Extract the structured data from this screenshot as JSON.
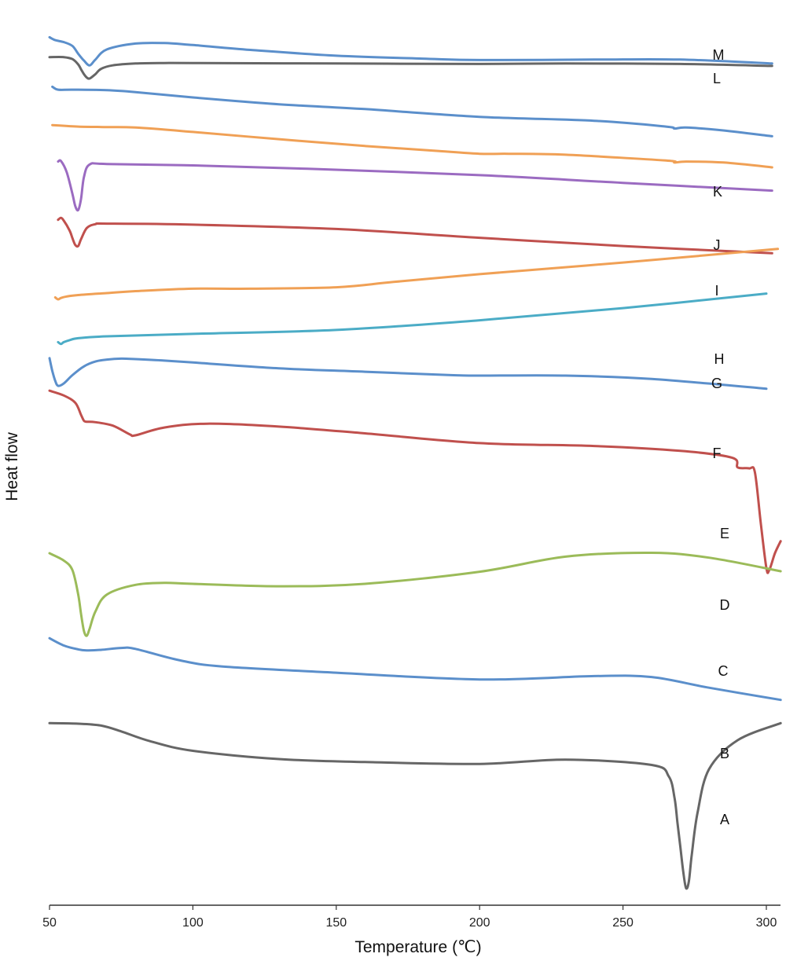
{
  "chart_data": {
    "type": "line",
    "title": "",
    "xlabel": "Temperature (℃)",
    "ylabel": "Heat flow",
    "xlim": [
      50,
      305
    ],
    "x_ticks": [
      50,
      100,
      150,
      200,
      250,
      300
    ],
    "y_ticks_shown": false,
    "grid": false,
    "legend": "none — each curve labelled directly at right",
    "series": [
      {
        "name": "M",
        "color": "#5b8fcb",
        "x": [
          50,
          52,
          55,
          58,
          60,
          62,
          64,
          66,
          70,
          80,
          90,
          100,
          120,
          150,
          180,
          200,
          240,
          270,
          302
        ],
        "y": [
          12.38,
          12.32,
          12.28,
          12.2,
          12.04,
          11.9,
          11.8,
          11.92,
          12.13,
          12.25,
          12.26,
          12.22,
          12.12,
          12.0,
          11.94,
          11.91,
          11.92,
          11.92,
          11.84
        ]
      },
      {
        "name": "L",
        "color": "#666666",
        "x": [
          50,
          55,
          58,
          60,
          61,
          62,
          63,
          64,
          66,
          68,
          72,
          80,
          90,
          100,
          150,
          200,
          230,
          270,
          302
        ],
        "y": [
          11.97,
          11.97,
          11.93,
          11.82,
          11.72,
          11.62,
          11.55,
          11.53,
          11.62,
          11.73,
          11.8,
          11.84,
          11.85,
          11.85,
          11.84,
          11.83,
          11.84,
          11.83,
          11.79
        ]
      },
      {
        "name": "K",
        "color": "#5b8fcb",
        "x": [
          51,
          53,
          58,
          70,
          80,
          100,
          130,
          160,
          200,
          240,
          265,
          268,
          272,
          285,
          302
        ],
        "y": [
          11.36,
          11.3,
          11.3,
          11.29,
          11.25,
          11.14,
          11.0,
          10.9,
          10.74,
          10.66,
          10.54,
          10.5,
          10.52,
          10.46,
          10.34
        ]
      },
      {
        "name": "J",
        "color": "#f0a055",
        "x": [
          51,
          60,
          70,
          80,
          100,
          130,
          160,
          185,
          200,
          210,
          230,
          265,
          268,
          272,
          285,
          302
        ],
        "y": [
          10.57,
          10.54,
          10.53,
          10.52,
          10.43,
          10.28,
          10.14,
          10.04,
          9.98,
          9.98,
          9.96,
          9.84,
          9.8,
          9.82,
          9.8,
          9.7
        ]
      },
      {
        "name": "I",
        "color": "#9b6bc1",
        "x": [
          53,
          54,
          56,
          58,
          59,
          60,
          61,
          62,
          64,
          70,
          100,
          140,
          200,
          250,
          302
        ],
        "y": [
          9.82,
          9.83,
          9.6,
          9.15,
          8.9,
          8.82,
          9.05,
          9.5,
          9.76,
          9.77,
          9.74,
          9.67,
          9.54,
          9.38,
          9.22
        ]
      },
      {
        "name": "H",
        "color": "#c0504d",
        "x": [
          53,
          54,
          55,
          57,
          58,
          59,
          60,
          61,
          63,
          66,
          70,
          100,
          150,
          200,
          250,
          302
        ],
        "y": [
          8.62,
          8.66,
          8.6,
          8.4,
          8.24,
          8.1,
          8.08,
          8.22,
          8.45,
          8.53,
          8.54,
          8.52,
          8.43,
          8.25,
          8.08,
          7.93
        ]
      },
      {
        "name": "G",
        "color": "#f0a055",
        "x": [
          52,
          53,
          54,
          56,
          60,
          70,
          80,
          100,
          120,
          150,
          170,
          200,
          250,
          304
        ],
        "y": [
          7.02,
          6.98,
          7.01,
          7.04,
          7.07,
          7.11,
          7.15,
          7.2,
          7.2,
          7.23,
          7.34,
          7.5,
          7.74,
          8.02
        ]
      },
      {
        "name": "F",
        "color": "#4bacc6",
        "x": [
          53,
          54,
          55,
          57,
          60,
          70,
          100,
          150,
          200,
          250,
          300
        ],
        "y": [
          6.1,
          6.06,
          6.1,
          6.14,
          6.18,
          6.22,
          6.27,
          6.35,
          6.55,
          6.8,
          7.1
        ]
      },
      {
        "name": "E",
        "color": "#5b8fcb",
        "x": [
          50,
          51,
          52,
          53,
          55,
          58,
          62,
          66,
          70,
          75,
          80,
          90,
          100,
          130,
          160,
          190,
          200,
          230,
          260,
          300
        ],
        "y": [
          5.77,
          5.5,
          5.3,
          5.2,
          5.25,
          5.42,
          5.6,
          5.7,
          5.74,
          5.76,
          5.75,
          5.72,
          5.68,
          5.56,
          5.49,
          5.42,
          5.41,
          5.41,
          5.34,
          5.14
        ]
      },
      {
        "name": "D",
        "color": "#c0504d",
        "x": [
          50,
          55,
          59,
          61,
          62,
          63,
          66,
          72,
          78,
          80,
          90,
          105,
          130,
          160,
          200,
          240,
          270,
          288,
          290,
          294,
          296,
          298,
          300,
          301,
          303,
          305
        ],
        "y": [
          5.1,
          5.0,
          4.85,
          4.6,
          4.48,
          4.46,
          4.45,
          4.38,
          4.2,
          4.18,
          4.34,
          4.42,
          4.36,
          4.22,
          4.02,
          3.96,
          3.86,
          3.72,
          3.52,
          3.5,
          3.42,
          2.4,
          1.45,
          1.4,
          1.75,
          2.0
        ]
      },
      {
        "name": "C",
        "color": "#9bbb59",
        "x": [
          50,
          55,
          58,
          60,
          61,
          62,
          63,
          64,
          66,
          70,
          80,
          90,
          100,
          130,
          160,
          200,
          230,
          260,
          280,
          305
        ],
        "y": [
          1.75,
          1.6,
          1.4,
          0.9,
          0.5,
          0.15,
          0.05,
          0.2,
          0.55,
          0.9,
          1.1,
          1.14,
          1.12,
          1.07,
          1.12,
          1.37,
          1.68,
          1.76,
          1.66,
          1.38
        ]
      },
      {
        "name": "B",
        "color": "#5b8fcb",
        "x": [
          50,
          55,
          60,
          63,
          68,
          75,
          80,
          95,
          110,
          150,
          200,
          240,
          260,
          280,
          305
        ],
        "y": [
          0.0,
          -0.15,
          -0.23,
          -0.25,
          -0.24,
          -0.2,
          -0.22,
          -0.45,
          -0.58,
          -0.71,
          -0.85,
          -0.78,
          -0.8,
          -1.02,
          -1.27
        ]
      },
      {
        "name": "A",
        "color": "#666666",
        "x": [
          50,
          60,
          68,
          75,
          85,
          100,
          130,
          160,
          200,
          230,
          260,
          266,
          268,
          269,
          270,
          271,
          272,
          273,
          274,
          276,
          280,
          290,
          305
        ],
        "y": [
          -1.75,
          -1.76,
          -1.8,
          -1.92,
          -2.12,
          -2.32,
          -2.49,
          -2.55,
          -2.59,
          -2.5,
          -2.61,
          -2.85,
          -3.3,
          -3.8,
          -4.3,
          -4.8,
          -5.15,
          -5.0,
          -4.45,
          -3.6,
          -2.7,
          -2.1,
          -1.75
        ]
      }
    ]
  }
}
